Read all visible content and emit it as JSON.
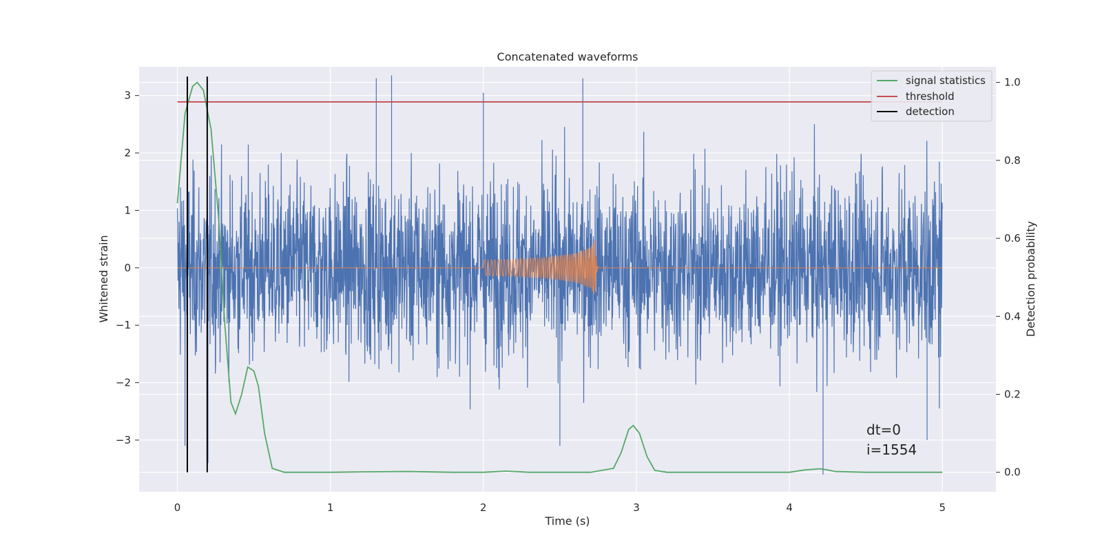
{
  "chart_data": {
    "type": "line",
    "title": "Concatenated waveforms",
    "xlabel": "Time (s)",
    "ylabel": "Whitened strain",
    "ylabel_right": "Detection probability",
    "xlim": [
      -0.25,
      5.35
    ],
    "ylim": [
      -3.9,
      3.5
    ],
    "ylim_right": [
      -0.05,
      1.04
    ],
    "xticks": [
      0,
      1,
      2,
      3,
      4,
      5
    ],
    "yticks": [
      -3,
      -2,
      -1,
      0,
      1,
      2,
      3
    ],
    "yticks_right": [
      0.0,
      0.2,
      0.4,
      0.6,
      0.8,
      1.0
    ],
    "xtick_labels": [
      "0",
      "1",
      "2",
      "3",
      "4",
      "5"
    ],
    "ytick_labels": [
      "−3",
      "−2",
      "−1",
      "0",
      "1",
      "2",
      "3"
    ],
    "ytick_right_labels": [
      "0.0",
      "0.2",
      "0.4",
      "0.6",
      "0.8",
      "1.0"
    ],
    "grid": true,
    "legend_position": "top-right",
    "series": [
      {
        "role": "noise",
        "color": "#4c72b0",
        "axis": "left",
        "x_range": [
          0,
          5
        ],
        "typical_amplitude": 1.1,
        "extreme_peaks": [
          {
            "x": 0.02,
            "y": 1.4
          },
          {
            "x": 0.05,
            "y": -3.1
          },
          {
            "x": 0.2,
            "y": -3.4
          },
          {
            "x": 1.3,
            "y": 3.3
          },
          {
            "x": 1.4,
            "y": 3.35
          },
          {
            "x": 2.0,
            "y": 3.05
          },
          {
            "x": 2.5,
            "y": -3.1
          },
          {
            "x": 2.65,
            "y": 3.3
          },
          {
            "x": 4.22,
            "y": -3.6
          },
          {
            "x": 4.9,
            "y": -3.0
          },
          {
            "x": 4.98,
            "y": 1.85
          },
          {
            "x": 4.98,
            "y": -2.45
          }
        ]
      },
      {
        "role": "injected waveform",
        "color": "#dd8452",
        "axis": "left",
        "x": [
          0,
          2.0,
          2.0,
          2.2,
          2.4,
          2.6,
          2.7,
          2.73,
          2.74,
          2.75,
          5.0
        ],
        "amplitude": [
          0,
          0,
          0.14,
          0.15,
          0.18,
          0.25,
          0.35,
          0.5,
          0.1,
          0,
          0
        ]
      },
      {
        "name": "signal statistics",
        "color": "#55a868",
        "axis": "right",
        "x": [
          0,
          0.05,
          0.1,
          0.13,
          0.17,
          0.22,
          0.27,
          0.31,
          0.35,
          0.38,
          0.42,
          0.46,
          0.5,
          0.53,
          0.57,
          0.62,
          0.7,
          1.0,
          1.2,
          1.5,
          1.8,
          2.0,
          2.15,
          2.3,
          2.7,
          2.85,
          2.9,
          2.95,
          2.98,
          3.02,
          3.07,
          3.12,
          3.2,
          3.5,
          4.0,
          4.1,
          4.2,
          4.25,
          4.3,
          4.5,
          5.0
        ],
        "y": [
          0.69,
          0.92,
          0.99,
          1.0,
          0.98,
          0.88,
          0.65,
          0.38,
          0.18,
          0.15,
          0.2,
          0.27,
          0.26,
          0.22,
          0.1,
          0.01,
          0.0,
          0.0,
          0.001,
          0.002,
          0.0,
          0.0,
          0.003,
          0.0,
          0.0,
          0.01,
          0.05,
          0.11,
          0.12,
          0.1,
          0.04,
          0.005,
          0.0,
          0.0,
          0.0,
          0.006,
          0.009,
          0.006,
          0.002,
          0.0,
          0.0
        ]
      },
      {
        "name": "threshold",
        "color": "#c44e52",
        "axis": "right",
        "x": [
          0,
          5
        ],
        "y": [
          0.95,
          0.95
        ]
      },
      {
        "name": "detection",
        "color": "#000000",
        "axis": "right",
        "x": [
          0.065,
          0.195
        ],
        "y_range": [
          0.0,
          1.0
        ]
      }
    ],
    "annotations": [
      "dt=0",
      "i=1554"
    ]
  }
}
